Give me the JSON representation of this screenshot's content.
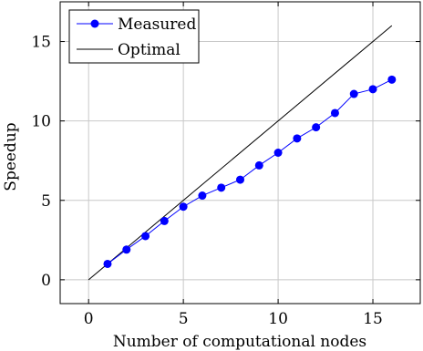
{
  "chart_data": {
    "type": "line",
    "xlabel": "Number of computational nodes",
    "ylabel": "Speedup",
    "xlim": [
      -1.5,
      17.5
    ],
    "ylim": [
      -1.5,
      17.5
    ],
    "xticks": [
      0,
      5,
      10,
      15
    ],
    "yticks": [
      0,
      5,
      10,
      15
    ],
    "grid": true,
    "legend_position": "top-left",
    "series": [
      {
        "name": "Measured",
        "color": "#0000ff",
        "marker": "circle",
        "x": [
          1,
          2,
          3,
          4,
          5,
          6,
          7,
          8,
          9,
          10,
          11,
          12,
          13,
          14,
          15,
          16
        ],
        "y": [
          1.0,
          1.9,
          2.75,
          3.7,
          4.6,
          5.3,
          5.8,
          6.3,
          7.2,
          8.0,
          8.9,
          9.6,
          10.5,
          11.7,
          12.0,
          12.6
        ]
      },
      {
        "name": "Optimal",
        "color": "#000000",
        "marker": "none",
        "x": [
          0,
          16
        ],
        "y": [
          0,
          16
        ]
      }
    ]
  }
}
